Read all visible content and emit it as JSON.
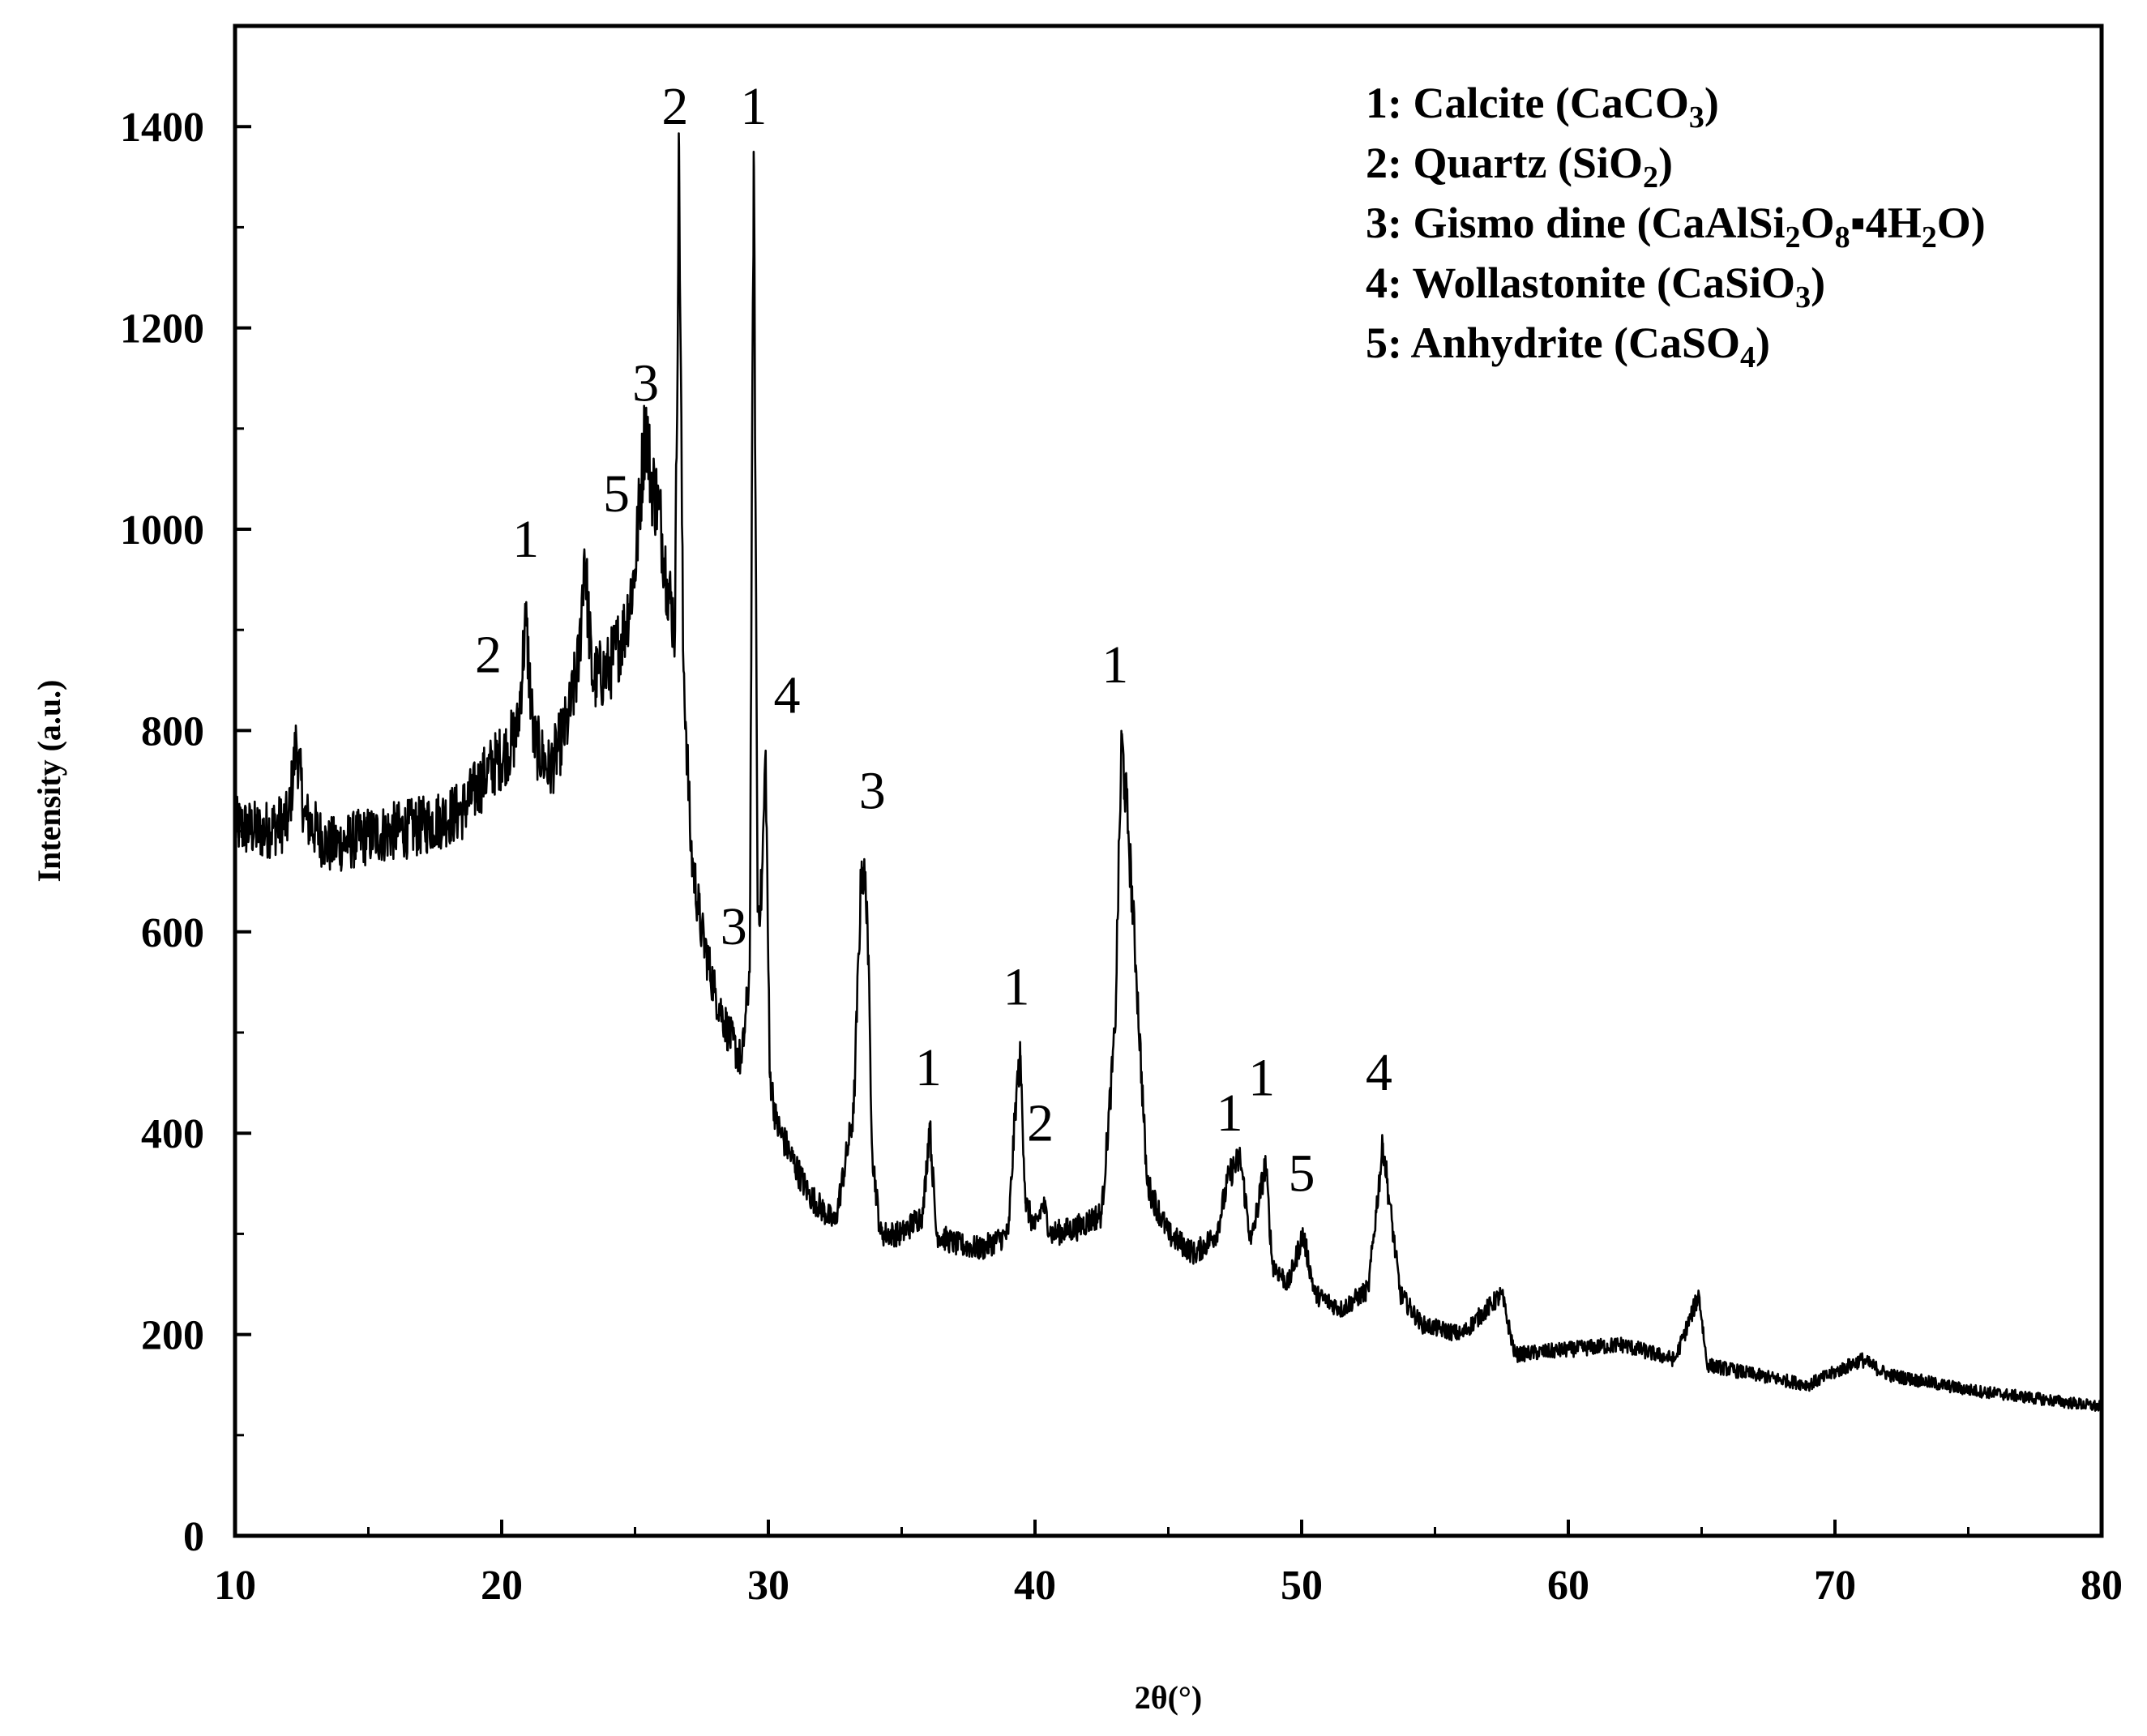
{
  "chart_data": {
    "type": "line",
    "title": "",
    "xlabel": "2θ(°)",
    "ylabel": "Intensity (a.u.)",
    "xlim": [
      10,
      80
    ],
    "ylim": [
      0,
      1500
    ],
    "x_ticks": [
      10,
      20,
      30,
      40,
      50,
      60,
      70,
      80
    ],
    "y_ticks": [
      0,
      200,
      400,
      600,
      800,
      1000,
      1200,
      1400
    ],
    "grid": false,
    "legend_position": "top-right",
    "line_color": "#000000",
    "series": [
      {
        "x": [
          10,
          11,
          12,
          12.3,
          12.6,
          13.5,
          15,
          17,
          18.5,
          19.5,
          20.2,
          20.6,
          20.9,
          21.2,
          21.8,
          22.5,
          22.9,
          23.1,
          23.4,
          24,
          24.6,
          25,
          25.4,
          25.6,
          25.9,
          26.2,
          26.5,
          26.65,
          26.8,
          27.1,
          27.5,
          28,
          28.5,
          29,
          29.3,
          29.45,
          29.6,
          29.75,
          29.9,
          30.05,
          30.3,
          30.8,
          31.5,
          32.5,
          33.2,
          33.5,
          33.7,
          33.9,
          34.2,
          35,
          35.8,
          36.05,
          36.3,
          37,
          38,
          39,
          39.3,
          39.45,
          39.65,
          40,
          40.3,
          40.6,
          41.5,
          42.5,
          43,
          43.25,
          43.5,
          43.8,
          44.2,
          45,
          46,
          46.8,
          47.3,
          47.7,
          48.1,
          48.65,
          48.9,
          49.5,
          50.05,
          50.5,
          51.5,
          52.5,
          53.05,
          53.3,
          53.7,
          54.5,
          56,
          57.5,
          58,
          60,
          62,
          64,
          64.9,
          65.2,
          67,
          69,
          71,
          72,
          75,
          78,
          80
        ],
        "y": [
          705,
          700,
          710,
          790,
          715,
          685,
          695,
          705,
          720,
          760,
          780,
          800,
          910,
          790,
          760,
          810,
          870,
          980,
          850,
          860,
          900,
          960,
          1110,
          1050,
          1020,
          950,
          900,
          1380,
          880,
          680,
          600,
          540,
          500,
          470,
          560,
          1375,
          620,
          640,
          780,
          460,
          410,
          380,
          340,
          310,
          420,
          670,
          630,
          380,
          300,
          300,
          320,
          410,
          300,
          290,
          285,
          300,
          440,
          475,
          330,
          305,
          330,
          300,
          305,
          320,
          500,
          790,
          700,
          560,
          350,
          300,
          280,
          300,
          360,
          375,
          290,
          370,
          270,
          250,
          300,
          240,
          225,
          245,
          390,
          330,
          240,
          210,
          200,
          240,
          180,
          185,
          190,
          175,
          240,
          170,
          160,
          150,
          175,
          160,
          145,
          135,
          128
        ]
      }
    ],
    "peak_labels": [
      {
        "label": "2",
        "x": 26.5,
        "y": 1385
      },
      {
        "label": "1",
        "x": 29.45,
        "y": 1385
      },
      {
        "label": "3",
        "x": 25.4,
        "y": 1110
      },
      {
        "label": "5",
        "x": 24.3,
        "y": 1000
      },
      {
        "label": "1",
        "x": 20.9,
        "y": 955
      },
      {
        "label": "2",
        "x": 19.5,
        "y": 840
      },
      {
        "label": "4",
        "x": 30.7,
        "y": 800
      },
      {
        "label": "3",
        "x": 28.7,
        "y": 570
      },
      {
        "label": "3",
        "x": 33.9,
        "y": 705
      },
      {
        "label": "1",
        "x": 36.0,
        "y": 430
      },
      {
        "label": "1",
        "x": 39.3,
        "y": 510
      },
      {
        "label": "2",
        "x": 40.2,
        "y": 375
      },
      {
        "label": "1",
        "x": 43.0,
        "y": 830
      },
      {
        "label": "1",
        "x": 47.3,
        "y": 385
      },
      {
        "label": "1",
        "x": 48.5,
        "y": 420
      },
      {
        "label": "5",
        "x": 50.0,
        "y": 325
      },
      {
        "label": "4",
        "x": 52.9,
        "y": 425
      }
    ]
  },
  "legend": {
    "entries": [
      {
        "number": "1",
        "name": "Calcite",
        "formula": [
          [
            "(CaCO",
            "n"
          ],
          [
            "3",
            "sub"
          ],
          [
            ")",
            "n"
          ]
        ]
      },
      {
        "number": "2",
        "name": "Quartz",
        "formula": [
          [
            "(SiO",
            "n"
          ],
          [
            "2",
            "sub"
          ],
          [
            ")",
            "n"
          ]
        ]
      },
      {
        "number": "3",
        "name": "Gismo dine",
        "formula": [
          [
            "(CaAlSi",
            "n"
          ],
          [
            "2",
            "sub"
          ],
          [
            "O",
            "n"
          ],
          [
            "8",
            "sub"
          ],
          [
            "▪4H",
            "n"
          ],
          [
            "2",
            "sub"
          ],
          [
            "O)",
            "n"
          ]
        ]
      },
      {
        "number": "4",
        "name": "Wollastonite",
        "formula": [
          [
            "(CaSiO",
            "n"
          ],
          [
            "3",
            "sub"
          ],
          [
            ")",
            "n"
          ]
        ]
      },
      {
        "number": "5",
        "name": "Anhydrite",
        "formula": [
          [
            "(CaSO",
            "n"
          ],
          [
            "4",
            "sub"
          ],
          [
            ")",
            "n"
          ]
        ]
      }
    ]
  }
}
